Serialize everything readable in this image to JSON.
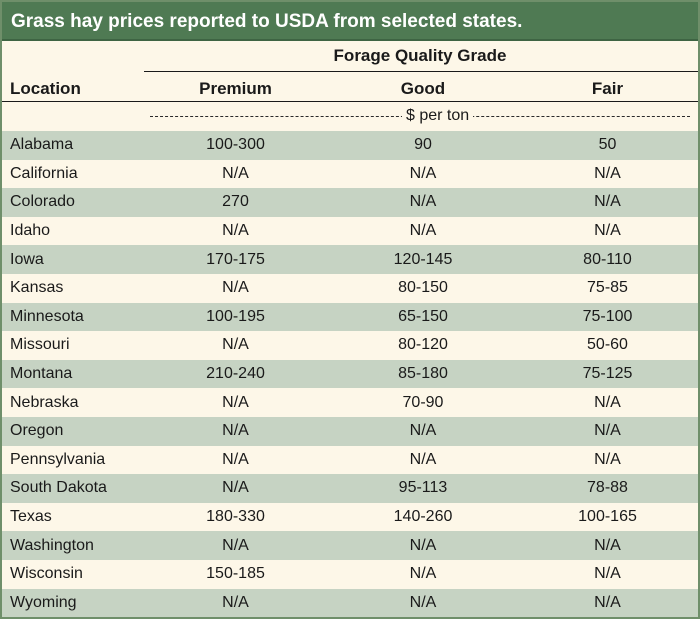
{
  "title": "Grass hay prices reported to USDA from selected states.",
  "group_header": "Forage Quality Grade",
  "columns": {
    "location": "Location",
    "premium": "Premium",
    "good": "Good",
    "fair": "Fair"
  },
  "units": "$ per ton",
  "rows": [
    {
      "location": "Alabama",
      "premium": "100-300",
      "good": "90",
      "fair": "50"
    },
    {
      "location": "California",
      "premium": "N/A",
      "good": "N/A",
      "fair": "N/A"
    },
    {
      "location": "Colorado",
      "premium": "270",
      "good": "N/A",
      "fair": "N/A"
    },
    {
      "location": "Idaho",
      "premium": "N/A",
      "good": "N/A",
      "fair": "N/A"
    },
    {
      "location": "Iowa",
      "premium": "170-175",
      "good": "120-145",
      "fair": "80-110"
    },
    {
      "location": "Kansas",
      "premium": "N/A",
      "good": "80-150",
      "fair": "75-85"
    },
    {
      "location": "Minnesota",
      "premium": "100-195",
      "good": "65-150",
      "fair": "75-100"
    },
    {
      "location": "Missouri",
      "premium": "N/A",
      "good": "80-120",
      "fair": "50-60"
    },
    {
      "location": "Montana",
      "premium": "210-240",
      "good": "85-180",
      "fair": "75-125"
    },
    {
      "location": "Nebraska",
      "premium": "N/A",
      "good": "70-90",
      "fair": "N/A"
    },
    {
      "location": "Oregon",
      "premium": "N/A",
      "good": "N/A",
      "fair": "N/A"
    },
    {
      "location": "Pennsylvania",
      "premium": "N/A",
      "good": "N/A",
      "fair": "N/A"
    },
    {
      "location": "South Dakota",
      "premium": "N/A",
      "good": "95-113",
      "fair": "78-88"
    },
    {
      "location": "Texas",
      "premium": "180-330",
      "good": "140-260",
      "fair": "100-165"
    },
    {
      "location": "Washington",
      "premium": "N/A",
      "good": "N/A",
      "fair": "N/A"
    },
    {
      "location": "Wisconsin",
      "premium": "150-185",
      "good": "N/A",
      "fair": "N/A"
    },
    {
      "location": "Wyoming",
      "premium": "N/A",
      "good": "N/A",
      "fair": "N/A"
    }
  ],
  "colors": {
    "title_bg": "#4f7a53",
    "band": "#c6d3c3",
    "cream": "#fdf7e8"
  }
}
